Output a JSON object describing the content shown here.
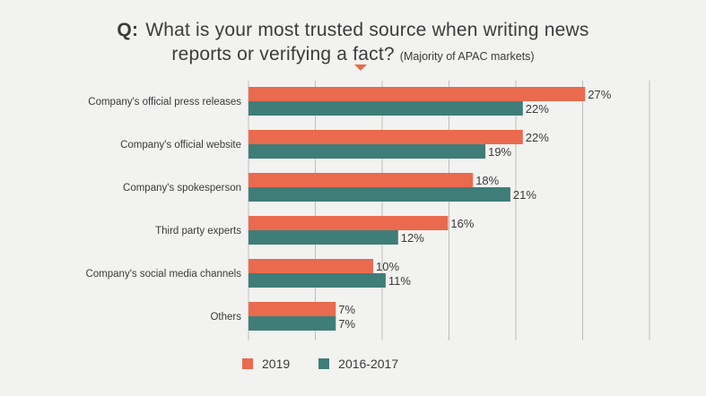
{
  "header": {
    "q_marker": "Q:",
    "line1": "What is your most trusted source when writing news",
    "line2": "reports or verifying a fact?",
    "subtitle": "(Majority of APAC markets)"
  },
  "colors": {
    "series_2019": "#e96a4e",
    "series_2016_2017": "#3f7d78",
    "grid": "#bdbdbd",
    "background": "#f2f2f0"
  },
  "chart_data": {
    "type": "bar",
    "orientation": "horizontal",
    "categories": [
      "Company's official press releases",
      "Company's official website",
      "Company's spokesperson",
      "Third party experts",
      "Company's social media channels",
      "Others"
    ],
    "series": [
      {
        "name": "2019",
        "values": [
          27,
          22,
          18,
          16,
          10,
          7
        ],
        "labels": [
          "27%",
          "22%",
          "18%",
          "16%",
          "10%",
          "7%"
        ]
      },
      {
        "name": "2016-2017",
        "values": [
          22,
          19,
          21,
          12,
          11,
          7
        ],
        "labels": [
          "22%",
          "19%",
          "21%",
          "12%",
          "11%",
          "7%"
        ]
      }
    ],
    "xlim": [
      0,
      30
    ],
    "grid": true,
    "legend": "bottom"
  },
  "legend": {
    "items": [
      "2019",
      "2016-2017"
    ]
  }
}
